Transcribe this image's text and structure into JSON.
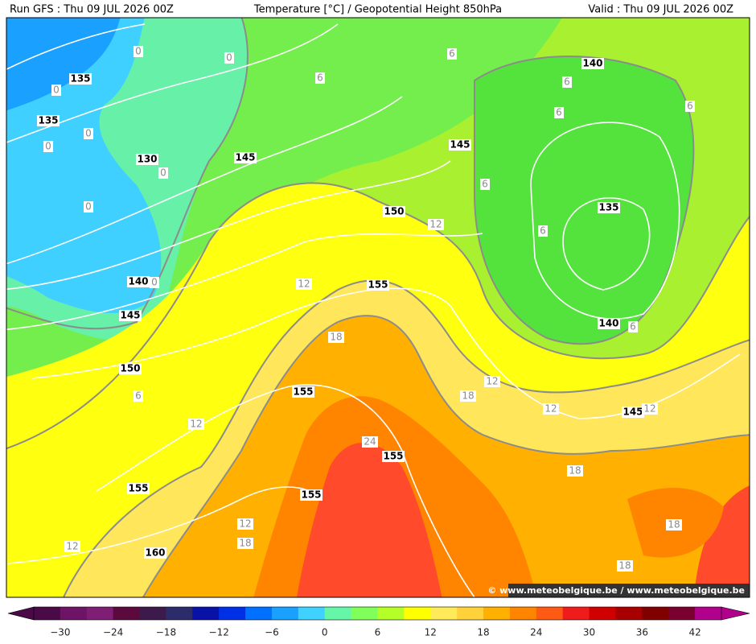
{
  "header": {
    "run": "Run GFS : Thu 09 JUL 2026 00Z",
    "title": "Temperature [°C] / Geopotential Height 850hPa",
    "valid": "Valid : Thu 09 JUL 2026 00Z"
  },
  "map": {
    "height_labels": [
      "135",
      "135",
      "130",
      "145",
      "150",
      "140",
      "145",
      "150",
      "155",
      "155",
      "155",
      "155",
      "155",
      "160",
      "140",
      "145",
      "135",
      "140",
      "145"
    ],
    "temperature_labels": [
      "0",
      "0",
      "0",
      "0",
      "0",
      "0",
      "0",
      "0",
      "6",
      "6",
      "6",
      "6",
      "6",
      "6",
      "6",
      "6",
      "6",
      "12",
      "12",
      "12",
      "12",
      "12",
      "12",
      "12",
      "12",
      "18",
      "18",
      "18",
      "18",
      "18",
      "18",
      "24"
    ],
    "credit": "© www.meteobelgique.be / www.meteobelgique.be"
  },
  "colorbar": {
    "labels": [
      "−30",
      "−24",
      "−18",
      "−12",
      "−6",
      "0",
      "6",
      "12",
      "18",
      "24",
      "30",
      "36",
      "42"
    ],
    "colors": [
      "#4a0a48",
      "#6e1466",
      "#7e1e74",
      "#5c0a3e",
      "#3c1a4c",
      "#2c2c6a",
      "#0812a6",
      "#0030e6",
      "#0070ff",
      "#1aa0ff",
      "#40d2ff",
      "#66f6a8",
      "#80ff5a",
      "#b4ff28",
      "#ffff00",
      "#ffea5a",
      "#ffd23c",
      "#ffb000",
      "#ff8400",
      "#ff5a14",
      "#f01c1c",
      "#d00000",
      "#a80000",
      "#800000",
      "#7a0030",
      "#b0008c"
    ]
  }
}
